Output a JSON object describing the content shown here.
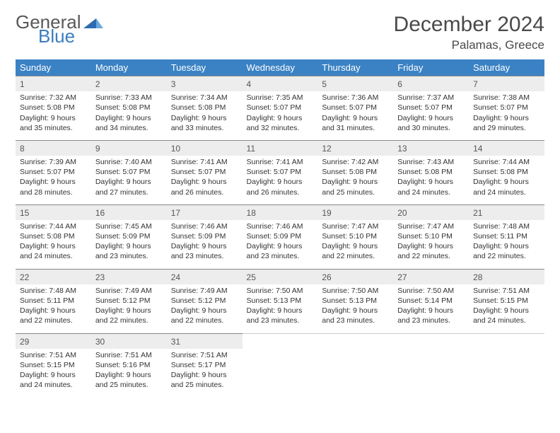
{
  "brand": {
    "word1": "General",
    "word2": "Blue"
  },
  "title": "December 2024",
  "location": "Palamas, Greece",
  "colors": {
    "header_bg": "#3b82c4",
    "header_fg": "#ffffff",
    "daynum_bg": "#ededed",
    "border": "#888888",
    "text": "#333333",
    "brand_gray": "#595959",
    "brand_blue": "#3b7dc0"
  },
  "typography": {
    "title_fontsize": 30,
    "subtitle_fontsize": 17,
    "header_fontsize": 13,
    "daynum_fontsize": 12,
    "cell_fontsize": 10.5
  },
  "weekdays": [
    "Sunday",
    "Monday",
    "Tuesday",
    "Wednesday",
    "Thursday",
    "Friday",
    "Saturday"
  ],
  "weeks": [
    [
      {
        "day": "1",
        "sunrise": "Sunrise: 7:32 AM",
        "sunset": "Sunset: 5:08 PM",
        "daylight1": "Daylight: 9 hours",
        "daylight2": "and 35 minutes."
      },
      {
        "day": "2",
        "sunrise": "Sunrise: 7:33 AM",
        "sunset": "Sunset: 5:08 PM",
        "daylight1": "Daylight: 9 hours",
        "daylight2": "and 34 minutes."
      },
      {
        "day": "3",
        "sunrise": "Sunrise: 7:34 AM",
        "sunset": "Sunset: 5:08 PM",
        "daylight1": "Daylight: 9 hours",
        "daylight2": "and 33 minutes."
      },
      {
        "day": "4",
        "sunrise": "Sunrise: 7:35 AM",
        "sunset": "Sunset: 5:07 PM",
        "daylight1": "Daylight: 9 hours",
        "daylight2": "and 32 minutes."
      },
      {
        "day": "5",
        "sunrise": "Sunrise: 7:36 AM",
        "sunset": "Sunset: 5:07 PM",
        "daylight1": "Daylight: 9 hours",
        "daylight2": "and 31 minutes."
      },
      {
        "day": "6",
        "sunrise": "Sunrise: 7:37 AM",
        "sunset": "Sunset: 5:07 PM",
        "daylight1": "Daylight: 9 hours",
        "daylight2": "and 30 minutes."
      },
      {
        "day": "7",
        "sunrise": "Sunrise: 7:38 AM",
        "sunset": "Sunset: 5:07 PM",
        "daylight1": "Daylight: 9 hours",
        "daylight2": "and 29 minutes."
      }
    ],
    [
      {
        "day": "8",
        "sunrise": "Sunrise: 7:39 AM",
        "sunset": "Sunset: 5:07 PM",
        "daylight1": "Daylight: 9 hours",
        "daylight2": "and 28 minutes."
      },
      {
        "day": "9",
        "sunrise": "Sunrise: 7:40 AM",
        "sunset": "Sunset: 5:07 PM",
        "daylight1": "Daylight: 9 hours",
        "daylight2": "and 27 minutes."
      },
      {
        "day": "10",
        "sunrise": "Sunrise: 7:41 AM",
        "sunset": "Sunset: 5:07 PM",
        "daylight1": "Daylight: 9 hours",
        "daylight2": "and 26 minutes."
      },
      {
        "day": "11",
        "sunrise": "Sunrise: 7:41 AM",
        "sunset": "Sunset: 5:07 PM",
        "daylight1": "Daylight: 9 hours",
        "daylight2": "and 26 minutes."
      },
      {
        "day": "12",
        "sunrise": "Sunrise: 7:42 AM",
        "sunset": "Sunset: 5:08 PM",
        "daylight1": "Daylight: 9 hours",
        "daylight2": "and 25 minutes."
      },
      {
        "day": "13",
        "sunrise": "Sunrise: 7:43 AM",
        "sunset": "Sunset: 5:08 PM",
        "daylight1": "Daylight: 9 hours",
        "daylight2": "and 24 minutes."
      },
      {
        "day": "14",
        "sunrise": "Sunrise: 7:44 AM",
        "sunset": "Sunset: 5:08 PM",
        "daylight1": "Daylight: 9 hours",
        "daylight2": "and 24 minutes."
      }
    ],
    [
      {
        "day": "15",
        "sunrise": "Sunrise: 7:44 AM",
        "sunset": "Sunset: 5:08 PM",
        "daylight1": "Daylight: 9 hours",
        "daylight2": "and 24 minutes."
      },
      {
        "day": "16",
        "sunrise": "Sunrise: 7:45 AM",
        "sunset": "Sunset: 5:09 PM",
        "daylight1": "Daylight: 9 hours",
        "daylight2": "and 23 minutes."
      },
      {
        "day": "17",
        "sunrise": "Sunrise: 7:46 AM",
        "sunset": "Sunset: 5:09 PM",
        "daylight1": "Daylight: 9 hours",
        "daylight2": "and 23 minutes."
      },
      {
        "day": "18",
        "sunrise": "Sunrise: 7:46 AM",
        "sunset": "Sunset: 5:09 PM",
        "daylight1": "Daylight: 9 hours",
        "daylight2": "and 23 minutes."
      },
      {
        "day": "19",
        "sunrise": "Sunrise: 7:47 AM",
        "sunset": "Sunset: 5:10 PM",
        "daylight1": "Daylight: 9 hours",
        "daylight2": "and 22 minutes."
      },
      {
        "day": "20",
        "sunrise": "Sunrise: 7:47 AM",
        "sunset": "Sunset: 5:10 PM",
        "daylight1": "Daylight: 9 hours",
        "daylight2": "and 22 minutes."
      },
      {
        "day": "21",
        "sunrise": "Sunrise: 7:48 AM",
        "sunset": "Sunset: 5:11 PM",
        "daylight1": "Daylight: 9 hours",
        "daylight2": "and 22 minutes."
      }
    ],
    [
      {
        "day": "22",
        "sunrise": "Sunrise: 7:48 AM",
        "sunset": "Sunset: 5:11 PM",
        "daylight1": "Daylight: 9 hours",
        "daylight2": "and 22 minutes."
      },
      {
        "day": "23",
        "sunrise": "Sunrise: 7:49 AM",
        "sunset": "Sunset: 5:12 PM",
        "daylight1": "Daylight: 9 hours",
        "daylight2": "and 22 minutes."
      },
      {
        "day": "24",
        "sunrise": "Sunrise: 7:49 AM",
        "sunset": "Sunset: 5:12 PM",
        "daylight1": "Daylight: 9 hours",
        "daylight2": "and 22 minutes."
      },
      {
        "day": "25",
        "sunrise": "Sunrise: 7:50 AM",
        "sunset": "Sunset: 5:13 PM",
        "daylight1": "Daylight: 9 hours",
        "daylight2": "and 23 minutes."
      },
      {
        "day": "26",
        "sunrise": "Sunrise: 7:50 AM",
        "sunset": "Sunset: 5:13 PM",
        "daylight1": "Daylight: 9 hours",
        "daylight2": "and 23 minutes."
      },
      {
        "day": "27",
        "sunrise": "Sunrise: 7:50 AM",
        "sunset": "Sunset: 5:14 PM",
        "daylight1": "Daylight: 9 hours",
        "daylight2": "and 23 minutes."
      },
      {
        "day": "28",
        "sunrise": "Sunrise: 7:51 AM",
        "sunset": "Sunset: 5:15 PM",
        "daylight1": "Daylight: 9 hours",
        "daylight2": "and 24 minutes."
      }
    ],
    [
      {
        "day": "29",
        "sunrise": "Sunrise: 7:51 AM",
        "sunset": "Sunset: 5:15 PM",
        "daylight1": "Daylight: 9 hours",
        "daylight2": "and 24 minutes."
      },
      {
        "day": "30",
        "sunrise": "Sunrise: 7:51 AM",
        "sunset": "Sunset: 5:16 PM",
        "daylight1": "Daylight: 9 hours",
        "daylight2": "and 25 minutes."
      },
      {
        "day": "31",
        "sunrise": "Sunrise: 7:51 AM",
        "sunset": "Sunset: 5:17 PM",
        "daylight1": "Daylight: 9 hours",
        "daylight2": "and 25 minutes."
      },
      null,
      null,
      null,
      null
    ]
  ]
}
